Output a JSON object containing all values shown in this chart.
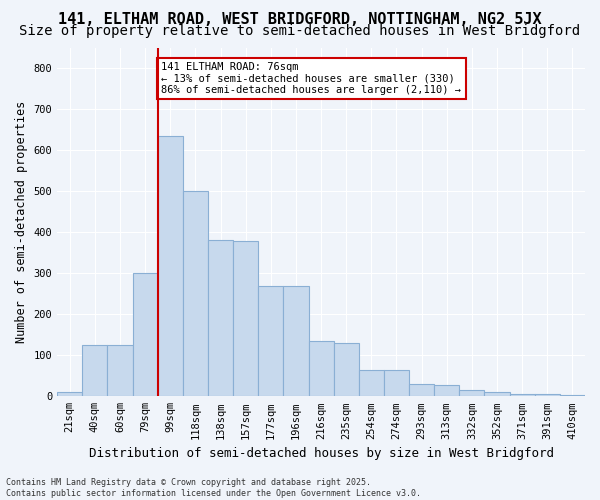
{
  "title1": "141, ELTHAM ROAD, WEST BRIDGFORD, NOTTINGHAM, NG2 5JX",
  "title2": "Size of property relative to semi-detached houses in West Bridgford",
  "xlabel": "Distribution of semi-detached houses by size in West Bridgford",
  "ylabel": "Number of semi-detached properties",
  "bins": [
    "21sqm",
    "40sqm",
    "60sqm",
    "79sqm",
    "99sqm",
    "118sqm",
    "138sqm",
    "157sqm",
    "177sqm",
    "196sqm",
    "216sqm",
    "235sqm",
    "254sqm",
    "274sqm",
    "293sqm",
    "313sqm",
    "332sqm",
    "352sqm",
    "371sqm",
    "391sqm",
    "410sqm"
  ],
  "values": [
    10,
    125,
    125,
    300,
    635,
    500,
    380,
    378,
    270,
    270,
    135,
    130,
    65,
    65,
    30,
    28,
    15,
    10,
    5,
    5,
    2
  ],
  "bar_color": "#c7d9ed",
  "bar_edge_color": "#8aafd4",
  "vline_x": 3.5,
  "vline_color": "#cc0000",
  "annotation_text": "141 ELTHAM ROAD: 76sqm\n← 13% of semi-detached houses are smaller (330)\n86% of semi-detached houses are larger (2,110) →",
  "annotation_box_color": "#ffffff",
  "annotation_box_edge": "#cc0000",
  "footer_text": "Contains HM Land Registry data © Crown copyright and database right 2025.\nContains public sector information licensed under the Open Government Licence v3.0.",
  "ylim": [
    0,
    850
  ],
  "yticks": [
    0,
    100,
    200,
    300,
    400,
    500,
    600,
    700,
    800
  ],
  "background_color": "#f0f4fa",
  "grid_color": "#ffffff",
  "title_fontsize": 11,
  "subtitle_fontsize": 10,
  "tick_fontsize": 7.5,
  "ylabel_fontsize": 8.5,
  "xlabel_fontsize": 9
}
